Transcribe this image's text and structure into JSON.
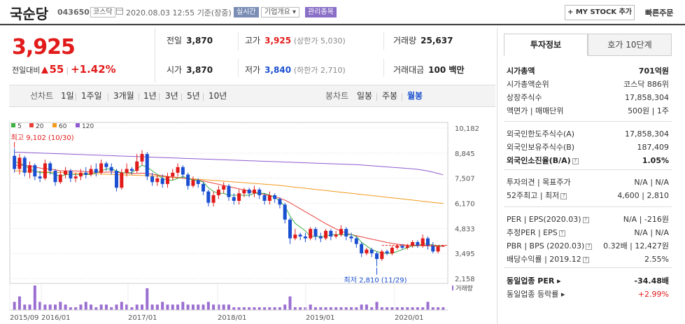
{
  "header": {
    "name": "국순당",
    "code": "043650",
    "market": "코스닥",
    "datetime": "2020.08.03 12:55",
    "basis": "기준(장중)",
    "tag_realtime": "실시간",
    "tag_overview": "기업개요 ▾",
    "tag_managed": "관리종목",
    "mystock": "+ MY STOCK 추가",
    "fast_order": "빠른주문"
  },
  "price": {
    "current": "3,925",
    "compare_label": "전일대비",
    "change": "55",
    "change_pct": "+1.42%",
    "up_color": "#e21a1a",
    "down_color": "#1a4fd1"
  },
  "summary": {
    "prev_label": "전일",
    "prev": "3,870",
    "high_label": "고가",
    "high": "3,925",
    "upper_limit": "(상한가 5,030)",
    "volume_label": "거래량",
    "volume": "25,637",
    "open_label": "시가",
    "open": "3,870",
    "low_label": "저가",
    "low": "3,840",
    "lower_limit": "(하한가 2,710)",
    "amount_label": "거래대금",
    "amount": "100 백만"
  },
  "toolbar": {
    "line_label": "선차트",
    "ranges": [
      "1일",
      "1주일",
      "3개월",
      "1년",
      "3년",
      "5년",
      "10년"
    ],
    "candle_label": "봉차트",
    "candles": [
      "일봉",
      "주봉",
      "월봉"
    ],
    "selected_candle": "월봉"
  },
  "chart_data": {
    "type": "candlestick",
    "legend": [
      {
        "name": "5",
        "color": "#3cb043"
      },
      {
        "name": "20",
        "color": "#e8413c"
      },
      {
        "name": "60",
        "color": "#f39a1e"
      },
      {
        "name": "120",
        "color": "#8e5bd0"
      }
    ],
    "y_ticks": [
      "10,182",
      "8,845",
      "7,507",
      "6,170",
      "4,833",
      "3,495",
      "2,158"
    ],
    "ylim": [
      2158,
      10182
    ],
    "x_ticks": [
      "2015/09",
      "2016/01",
      "2017/01",
      "2018/01",
      "2019/01",
      "2020/01"
    ],
    "high_annotation": "최고 9,102 (10/30)",
    "low_annotation": "최저 2,810 (11/29)",
    "volume_label": "거래량",
    "candles": [
      {
        "o": 8700,
        "c": 8000,
        "h": 9102,
        "l": 7800
      },
      {
        "o": 8000,
        "c": 8600,
        "h": 8800,
        "l": 7700
      },
      {
        "o": 8600,
        "c": 7800,
        "h": 8700,
        "l": 7600
      },
      {
        "o": 7800,
        "c": 8200,
        "h": 8400,
        "l": 7500
      },
      {
        "o": 8200,
        "c": 7600,
        "h": 8300,
        "l": 7400
      },
      {
        "o": 7600,
        "c": 7500,
        "h": 7900,
        "l": 7300
      },
      {
        "o": 7500,
        "c": 8300,
        "h": 8500,
        "l": 7400
      },
      {
        "o": 8300,
        "c": 7900,
        "h": 8400,
        "l": 7700
      },
      {
        "o": 7900,
        "c": 7300,
        "h": 8000,
        "l": 7100
      },
      {
        "o": 7300,
        "c": 7700,
        "h": 7900,
        "l": 7200
      },
      {
        "o": 7700,
        "c": 7900,
        "h": 8100,
        "l": 7500
      },
      {
        "o": 7900,
        "c": 7500,
        "h": 8000,
        "l": 7300
      },
      {
        "o": 7500,
        "c": 7600,
        "h": 7800,
        "l": 7300
      },
      {
        "o": 7600,
        "c": 7800,
        "h": 8000,
        "l": 7400
      },
      {
        "o": 7800,
        "c": 7700,
        "h": 8100,
        "l": 7500
      },
      {
        "o": 7700,
        "c": 8000,
        "h": 8200,
        "l": 7600
      },
      {
        "o": 8000,
        "c": 7800,
        "h": 8300,
        "l": 7600
      },
      {
        "o": 7800,
        "c": 8300,
        "h": 8500,
        "l": 7700
      },
      {
        "o": 8300,
        "c": 8100,
        "h": 8400,
        "l": 7900
      },
      {
        "o": 8100,
        "c": 7900,
        "h": 8300,
        "l": 7700
      },
      {
        "o": 7900,
        "c": 7000,
        "h": 8000,
        "l": 6800
      },
      {
        "o": 7000,
        "c": 7800,
        "h": 8000,
        "l": 6900
      },
      {
        "o": 7800,
        "c": 8000,
        "h": 8300,
        "l": 7600
      },
      {
        "o": 8000,
        "c": 7900,
        "h": 8100,
        "l": 7700
      },
      {
        "o": 7900,
        "c": 8400,
        "h": 8800,
        "l": 7800
      },
      {
        "o": 8400,
        "c": 8800,
        "h": 9000,
        "l": 8200
      },
      {
        "o": 8800,
        "c": 7600,
        "h": 8900,
        "l": 7400
      },
      {
        "o": 7600,
        "c": 7300,
        "h": 7800,
        "l": 7100
      },
      {
        "o": 7300,
        "c": 7500,
        "h": 7700,
        "l": 7100
      },
      {
        "o": 7500,
        "c": 7200,
        "h": 7700,
        "l": 7000
      },
      {
        "o": 7200,
        "c": 7600,
        "h": 7800,
        "l": 7000
      },
      {
        "o": 7600,
        "c": 7800,
        "h": 8000,
        "l": 7400
      },
      {
        "o": 7800,
        "c": 8100,
        "h": 8300,
        "l": 7600
      },
      {
        "o": 8100,
        "c": 7700,
        "h": 8200,
        "l": 7500
      },
      {
        "o": 7700,
        "c": 7100,
        "h": 7800,
        "l": 6900
      },
      {
        "o": 7100,
        "c": 7400,
        "h": 7600,
        "l": 7000
      },
      {
        "o": 7400,
        "c": 7200,
        "h": 7500,
        "l": 7000
      },
      {
        "o": 7200,
        "c": 6800,
        "h": 7300,
        "l": 6600
      },
      {
        "o": 6800,
        "c": 6200,
        "h": 6900,
        "l": 6000
      },
      {
        "o": 6200,
        "c": 6600,
        "h": 6800,
        "l": 6000
      },
      {
        "o": 6600,
        "c": 6900,
        "h": 7100,
        "l": 6400
      },
      {
        "o": 6900,
        "c": 7100,
        "h": 7300,
        "l": 6700
      },
      {
        "o": 7100,
        "c": 6500,
        "h": 7200,
        "l": 6300
      },
      {
        "o": 6500,
        "c": 6300,
        "h": 6700,
        "l": 6100
      },
      {
        "o": 6300,
        "c": 6700,
        "h": 6900,
        "l": 6100
      },
      {
        "o": 6700,
        "c": 6900,
        "h": 7000,
        "l": 6500
      },
      {
        "o": 6900,
        "c": 6700,
        "h": 7000,
        "l": 6500
      },
      {
        "o": 6700,
        "c": 6900,
        "h": 7100,
        "l": 6500
      },
      {
        "o": 6900,
        "c": 6600,
        "h": 7000,
        "l": 6400
      },
      {
        "o": 6600,
        "c": 6300,
        "h": 6700,
        "l": 6100
      },
      {
        "o": 6300,
        "c": 6600,
        "h": 6800,
        "l": 6100
      },
      {
        "o": 6600,
        "c": 6400,
        "h": 6700,
        "l": 6200
      },
      {
        "o": 6400,
        "c": 6100,
        "h": 6500,
        "l": 5900
      },
      {
        "o": 6100,
        "c": 5300,
        "h": 6200,
        "l": 5100
      },
      {
        "o": 5300,
        "c": 4300,
        "h": 5400,
        "l": 4000
      },
      {
        "o": 4300,
        "c": 4500,
        "h": 4800,
        "l": 4200
      },
      {
        "o": 4500,
        "c": 4400,
        "h": 4600,
        "l": 4200
      },
      {
        "o": 4400,
        "c": 4300,
        "h": 4600,
        "l": 4100
      },
      {
        "o": 4300,
        "c": 4800,
        "h": 4900,
        "l": 4200
      },
      {
        "o": 4800,
        "c": 4400,
        "h": 4900,
        "l": 4200
      },
      {
        "o": 4400,
        "c": 4300,
        "h": 4600,
        "l": 4100
      },
      {
        "o": 4300,
        "c": 4700,
        "h": 4800,
        "l": 4200
      },
      {
        "o": 4700,
        "c": 4400,
        "h": 4800,
        "l": 4200
      },
      {
        "o": 4400,
        "c": 4500,
        "h": 4700,
        "l": 4300
      },
      {
        "o": 4500,
        "c": 4800,
        "h": 5000,
        "l": 4400
      },
      {
        "o": 4800,
        "c": 4400,
        "h": 4900,
        "l": 4200
      },
      {
        "o": 4400,
        "c": 4300,
        "h": 4600,
        "l": 4100
      },
      {
        "o": 4300,
        "c": 4000,
        "h": 4400,
        "l": 3800
      },
      {
        "o": 4000,
        "c": 3500,
        "h": 4100,
        "l": 3300
      },
      {
        "o": 3500,
        "c": 3700,
        "h": 3800,
        "l": 3400
      },
      {
        "o": 3700,
        "c": 3500,
        "h": 3800,
        "l": 3300
      },
      {
        "o": 3500,
        "c": 3200,
        "h": 3600,
        "l": 2810
      },
      {
        "o": 3200,
        "c": 3600,
        "h": 3700,
        "l": 3100
      },
      {
        "o": 3600,
        "c": 3500,
        "h": 3700,
        "l": 3400
      },
      {
        "o": 3500,
        "c": 3800,
        "h": 3900,
        "l": 3400
      },
      {
        "o": 3800,
        "c": 3900,
        "h": 4000,
        "l": 3700
      },
      {
        "o": 3900,
        "c": 3800,
        "h": 4000,
        "l": 3700
      },
      {
        "o": 3800,
        "c": 3900,
        "h": 4000,
        "l": 3700
      },
      {
        "o": 3900,
        "c": 4100,
        "h": 4200,
        "l": 3800
      },
      {
        "o": 4100,
        "c": 3900,
        "h": 4200,
        "l": 3800
      },
      {
        "o": 3900,
        "c": 4300,
        "h": 4500,
        "l": 3800
      },
      {
        "o": 4300,
        "c": 3900,
        "h": 4400,
        "l": 3700
      },
      {
        "o": 3900,
        "c": 3600,
        "h": 4100,
        "l": 3500
      },
      {
        "o": 3600,
        "c": 3870,
        "h": 3900,
        "l": 3500
      },
      {
        "o": 3870,
        "c": 3925,
        "h": 3925,
        "l": 3840
      }
    ],
    "ma5": [
      8400,
      8300,
      8200,
      8000,
      7900,
      7800,
      7800,
      7800,
      7700,
      7600,
      7700,
      7700,
      7700,
      7700,
      7700,
      7700,
      7800,
      7900,
      8000,
      8000,
      7900,
      7800,
      7800,
      7800,
      8000,
      8200,
      8100,
      7900,
      7700,
      7500,
      7400,
      7400,
      7500,
      7600,
      7500,
      7400,
      7400,
      7300,
      7000,
      6800,
      6700,
      6700,
      6600,
      6600,
      6600,
      6600,
      6600,
      6700,
      6700,
      6700,
      6600,
      6500,
      6300,
      6000,
      5500,
      5100,
      4900,
      4700,
      4400,
      4400,
      4400,
      4400,
      4500,
      4500,
      4500,
      4500,
      4500,
      4400,
      4100,
      3900,
      3700,
      3600,
      3500,
      3500,
      3500,
      3600,
      3700,
      3800,
      3900,
      3900,
      4000,
      4000,
      3950,
      3900,
      3900
    ],
    "ma20": [
      8200,
      8200,
      8200,
      8150,
      8100,
      8050,
      8000,
      8000,
      7950,
      7900,
      7900,
      7900,
      7900,
      7880,
      7860,
      7840,
      7820,
      7820,
      7830,
      7840,
      7820,
      7800,
      7780,
      7760,
      7760,
      7780,
      7760,
      7720,
      7680,
      7640,
      7600,
      7570,
      7550,
      7520,
      7480,
      7440,
      7400,
      7360,
      7300,
      7240,
      7180,
      7120,
      7060,
      7000,
      6940,
      6880,
      6820,
      6760,
      6700,
      6640,
      6580,
      6520,
      6440,
      6340,
      6200,
      6040,
      5880,
      5720,
      5560,
      5400,
      5240,
      5080,
      4940,
      4800,
      4680,
      4580,
      4500,
      4440,
      4380,
      4320,
      4260,
      4200,
      4140,
      4080,
      4030,
      3990,
      3960,
      3940,
      3930,
      3920,
      3910,
      3900,
      3890,
      3880,
      3880
    ],
    "ma60": [
      7900,
      7890,
      7880,
      7870,
      7860,
      7850,
      7840,
      7830,
      7820,
      7810,
      7800,
      7790,
      7780,
      7770,
      7760,
      7750,
      7740,
      7730,
      7720,
      7710,
      7700,
      7690,
      7680,
      7670,
      7660,
      7650,
      7640,
      7630,
      7610,
      7590,
      7570,
      7550,
      7530,
      7510,
      7490,
      7470,
      7450,
      7430,
      7410,
      7390,
      7370,
      7350,
      7330,
      7310,
      7290,
      7270,
      7250,
      7230,
      7210,
      7190,
      7170,
      7150,
      7120,
      7090,
      7060,
      7030,
      7000,
      6970,
      6940,
      6910,
      6880,
      6850,
      6820,
      6790,
      6760,
      6730,
      6700,
      6670,
      6640,
      6610,
      6580,
      6550,
      6520,
      6490,
      6460,
      6430,
      6400,
      6370,
      6340,
      6310,
      6280,
      6250,
      6220,
      6190,
      6160
    ],
    "ma120": [
      8900,
      8890,
      8880,
      8870,
      8860,
      8850,
      8840,
      8830,
      8820,
      8810,
      8800,
      8790,
      8780,
      8770,
      8760,
      8750,
      8740,
      8730,
      8720,
      8710,
      8700,
      8690,
      8680,
      8670,
      8660,
      8650,
      8640,
      8630,
      8620,
      8610,
      8600,
      8590,
      8580,
      8570,
      8560,
      8550,
      8540,
      8530,
      8520,
      8510,
      8500,
      8490,
      8480,
      8470,
      8460,
      8450,
      8440,
      8430,
      8420,
      8410,
      8400,
      8390,
      8380,
      8370,
      8360,
      8350,
      8340,
      8330,
      8320,
      8310,
      8300,
      8290,
      8280,
      8270,
      8260,
      8250,
      8240,
      8230,
      8210,
      8190,
      8170,
      8150,
      8130,
      8110,
      8090,
      8070,
      8050,
      8030,
      8010,
      7980,
      7940,
      7890,
      7830,
      7760,
      7690
    ],
    "volume": [
      3,
      5,
      2,
      2,
      9,
      3,
      2,
      2,
      2,
      3,
      2,
      1,
      1,
      2,
      3,
      2,
      1,
      2,
      2,
      1,
      2,
      3,
      2,
      1,
      2,
      2,
      8,
      2,
      2,
      3,
      2,
      2,
      2,
      3,
      2,
      2,
      2,
      2,
      3,
      2,
      2,
      2,
      2,
      1,
      1,
      1,
      1,
      1,
      1,
      1,
      1,
      1,
      1,
      2,
      5,
      1,
      1,
      1,
      2,
      1,
      1,
      1,
      1,
      1,
      1,
      1,
      1,
      1,
      2,
      2,
      1,
      3,
      1,
      1,
      1,
      1,
      1,
      1,
      1,
      1,
      1,
      3,
      1,
      1,
      1
    ]
  },
  "right_panel": {
    "tab_active": "투자정보",
    "tab_inactive": "호가 10단계",
    "rows1": [
      {
        "l": "시가총액",
        "r": "701억원",
        "bold": true
      },
      {
        "l": "시가총액순위",
        "r": "코스닥 886위"
      },
      {
        "l": "상장주식수",
        "r": "17,858,304"
      },
      {
        "l": "액면가 | 매매단위",
        "r": "500원 | 1주"
      }
    ],
    "rows2": [
      {
        "l": "외국인한도주식수(A)",
        "r": "17,858,304"
      },
      {
        "l": "외국인보유주식수(B)",
        "r": "187,409"
      },
      {
        "l": "외국인소진율(B/A)",
        "r": "1.05%",
        "bold": true,
        "q": true
      }
    ],
    "rows3": [
      {
        "l": "투자의견 | 목표주가",
        "r": "N/A | N/A"
      },
      {
        "l": "52주최고 | 최저",
        "r": "4,600 | 2,810",
        "q": true
      }
    ],
    "rows4": [
      {
        "l": "PER | EPS(2020.03)",
        "r": "N/A | -216원",
        "q": true
      },
      {
        "l": "추정PER | EPS",
        "r": "N/A | N/A",
        "q": true
      },
      {
        "l": "PBR | BPS (2020.03)",
        "r": "0.32배 | 12,427원",
        "q": true
      },
      {
        "l": "배당수익률 | 2019.12",
        "r": "2.55%",
        "q": true
      }
    ],
    "rows5": [
      {
        "l": "동일업종 PER ▸",
        "r": "-34.48배",
        "bold": true
      },
      {
        "l": "동일업종 등락률 ▸",
        "r": "+2.99%",
        "red": true
      }
    ]
  }
}
